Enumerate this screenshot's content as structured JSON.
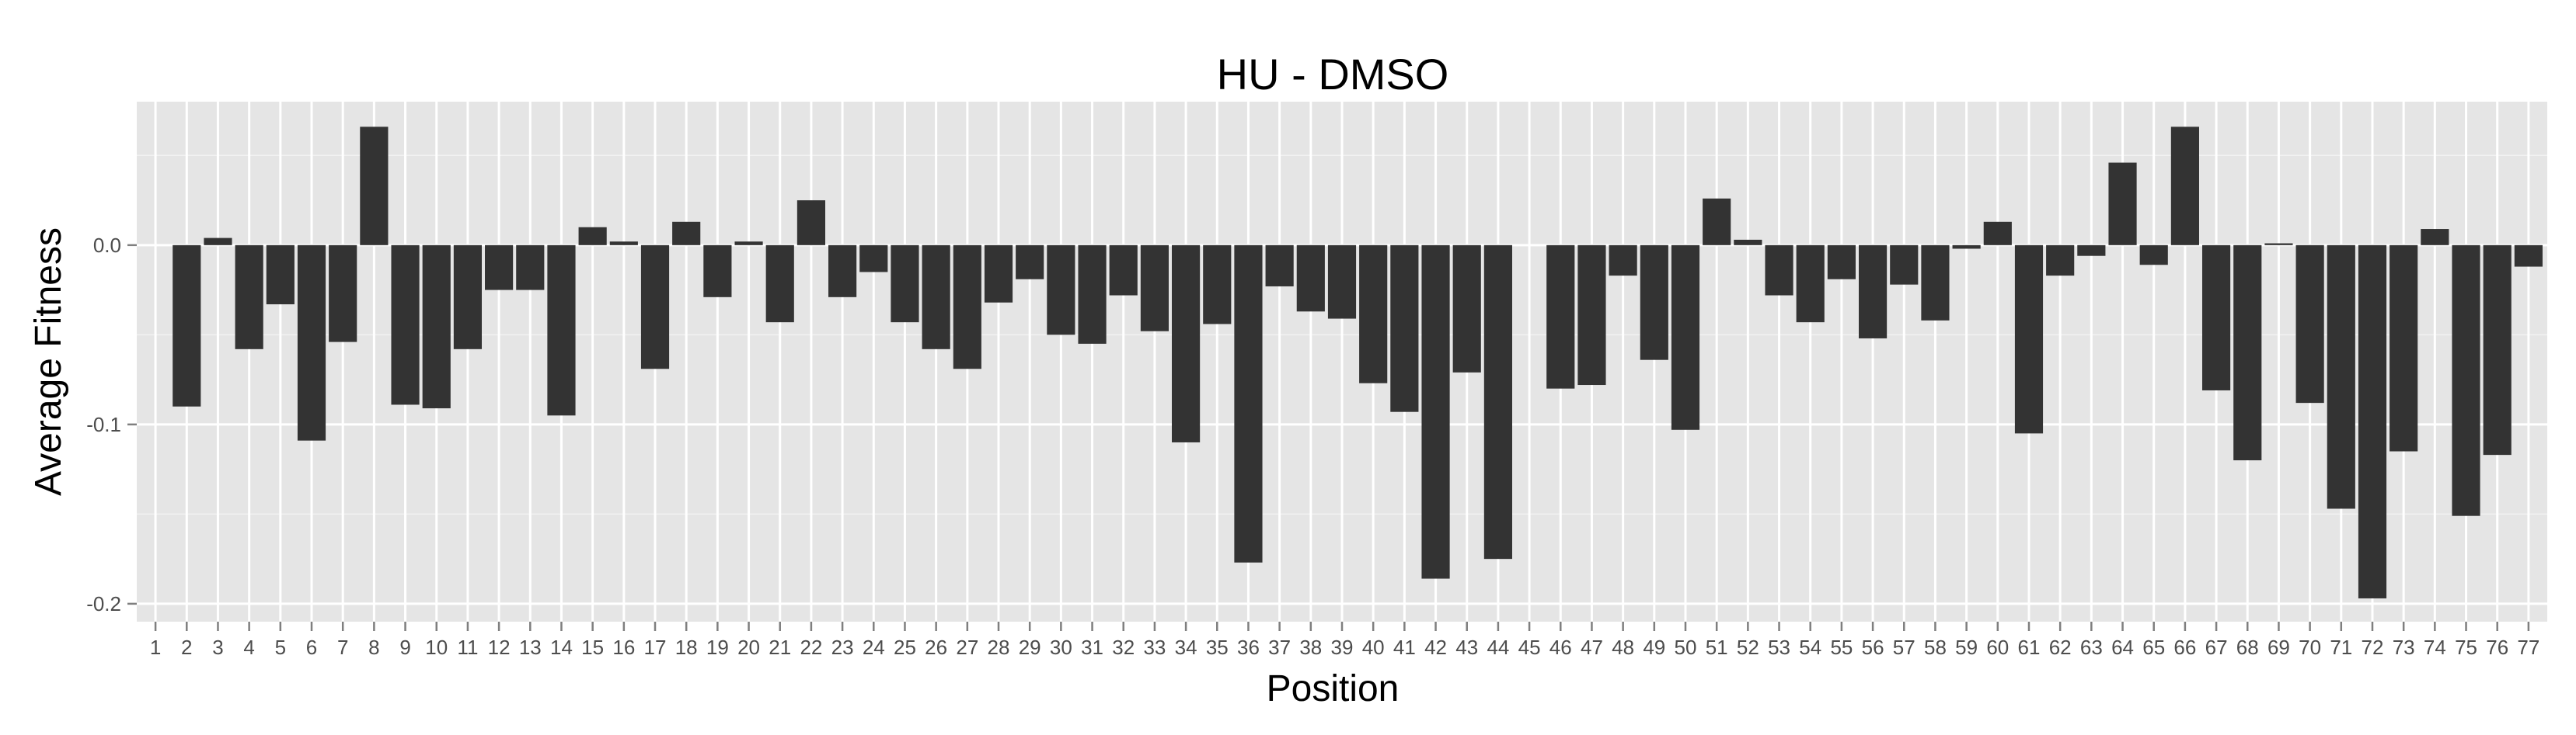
{
  "chart_data": {
    "type": "bar",
    "title": "HU - DMSO",
    "xlabel": "Position",
    "ylabel": "Average Fitness",
    "ylim": [
      -0.21,
      0.08
    ],
    "yticks": [
      -0.2,
      -0.1,
      0.0
    ],
    "ytick_labels": [
      "-0.2",
      "-0.1",
      "0.0"
    ],
    "grid": true,
    "background": "#e5e5e5",
    "bar_color": "#333333",
    "categories": [
      "1",
      "2",
      "3",
      "4",
      "5",
      "6",
      "7",
      "8",
      "9",
      "10",
      "11",
      "12",
      "13",
      "14",
      "15",
      "16",
      "17",
      "18",
      "19",
      "20",
      "21",
      "22",
      "23",
      "24",
      "25",
      "26",
      "27",
      "28",
      "29",
      "30",
      "31",
      "32",
      "33",
      "34",
      "35",
      "36",
      "37",
      "38",
      "39",
      "40",
      "41",
      "42",
      "43",
      "44",
      "45",
      "46",
      "47",
      "48",
      "49",
      "50",
      "51",
      "52",
      "53",
      "54",
      "55",
      "56",
      "57",
      "58",
      "59",
      "60",
      "61",
      "62",
      "63",
      "64",
      "65",
      "66",
      "67",
      "68",
      "69",
      "70",
      "71",
      "72",
      "73",
      "74",
      "75",
      "76",
      "77"
    ],
    "values": [
      0,
      -0.09,
      0.004,
      -0.058,
      -0.033,
      -0.109,
      -0.054,
      0.066,
      -0.089,
      -0.091,
      -0.058,
      -0.025,
      -0.025,
      -0.095,
      0.01,
      0.002,
      -0.069,
      0.013,
      -0.029,
      0.002,
      -0.043,
      0.025,
      -0.029,
      -0.015,
      -0.043,
      -0.058,
      -0.069,
      -0.032,
      -0.019,
      -0.05,
      -0.055,
      -0.028,
      -0.048,
      -0.11,
      -0.044,
      -0.177,
      -0.023,
      -0.037,
      -0.041,
      -0.077,
      -0.093,
      -0.186,
      -0.071,
      -0.175,
      0,
      -0.08,
      -0.078,
      -0.017,
      -0.064,
      -0.103,
      0.026,
      0.003,
      -0.028,
      -0.043,
      -0.019,
      -0.052,
      -0.022,
      -0.042,
      -0.002,
      0.013,
      -0.105,
      -0.017,
      -0.006,
      0.046,
      -0.011,
      0.066,
      -0.081,
      -0.12,
      0.001,
      -0.088,
      -0.147,
      -0.197,
      -0.115,
      0.009,
      -0.151,
      -0.117,
      -0.012
    ]
  }
}
